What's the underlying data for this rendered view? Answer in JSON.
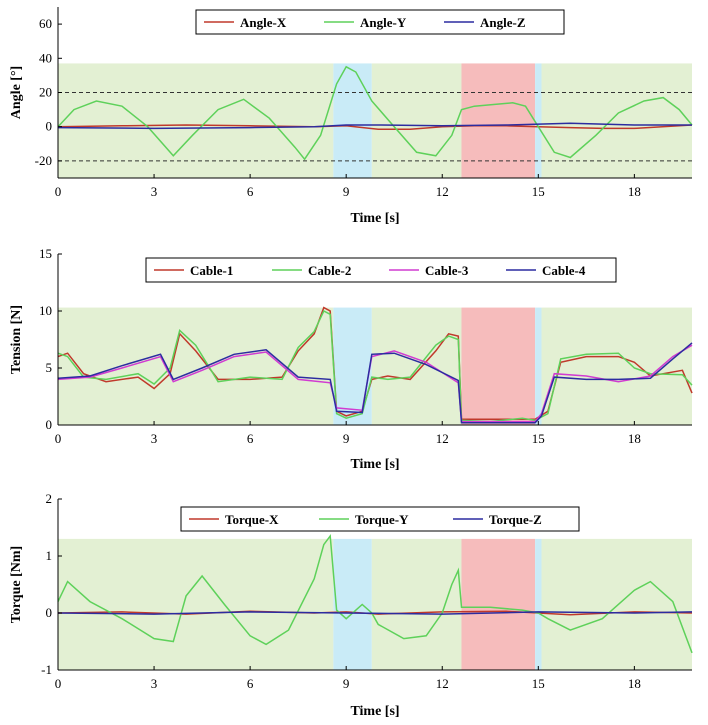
{
  "colors": {
    "zone_green": "#e3f0d3",
    "zone_blue": "#c9ebf7",
    "zone_red": "#f6bcbc",
    "x_red": "#c0392b",
    "y_green": "#5ed15a",
    "z_blue": "#2c2ca0",
    "magenta": "#d13bd1"
  },
  "chart_data": [
    {
      "type": "line",
      "title": "",
      "xlabel": "Time [s]",
      "ylabel": "Angle [°]",
      "xlim": [
        0,
        19.8
      ],
      "ylim": [
        -30,
        70
      ],
      "xticks": [
        "0",
        "3",
        "6",
        "9",
        "12",
        "15",
        "18"
      ],
      "yticks": [
        "-20",
        "0",
        "20",
        "40",
        "60"
      ],
      "xtick_values": [
        0,
        3,
        6,
        9,
        12,
        15,
        18
      ],
      "ytick_values": [
        -20,
        0,
        20,
        40,
        60
      ],
      "dashed_thresholds": [
        20,
        -20
      ],
      "background_band": [
        -30,
        37
      ],
      "zones": [
        {
          "kind": "green",
          "x0": 0,
          "x1": 8.6
        },
        {
          "kind": "blue",
          "x0": 8.6,
          "x1": 9.8
        },
        {
          "kind": "green",
          "x0": 9.8,
          "x1": 12.6
        },
        {
          "kind": "red",
          "x0": 12.6,
          "x1": 14.9
        },
        {
          "kind": "blue",
          "x0": 14.9,
          "x1": 15.1
        },
        {
          "kind": "green",
          "x0": 15.1,
          "x1": 19.8
        }
      ],
      "series": [
        {
          "name": "Angle-X",
          "color_key": "x_red",
          "x": [
            0,
            2,
            4,
            6,
            8,
            9,
            10,
            11,
            12,
            13,
            14,
            15,
            16,
            17,
            18,
            19.8
          ],
          "y": [
            0,
            0.5,
            1,
            0.5,
            0,
            0.5,
            -1.5,
            -1.5,
            0,
            0.5,
            0.5,
            0,
            -0.5,
            -1,
            -1,
            1
          ]
        },
        {
          "name": "Angle-Y",
          "color_key": "y_green",
          "x": [
            0,
            0.5,
            1.2,
            2,
            2.8,
            3.6,
            4.2,
            5,
            5.8,
            6.6,
            7.4,
            7.7,
            8.2,
            8.7,
            9,
            9.3,
            9.8,
            10.5,
            11.2,
            11.8,
            12.3,
            12.6,
            13,
            13.6,
            14.2,
            14.6,
            15,
            15.5,
            16,
            16.8,
            17.5,
            18.3,
            18.9,
            19.4,
            19.8
          ],
          "y": [
            0,
            10,
            15,
            12,
            0,
            -17,
            -5,
            10,
            16,
            5,
            -12,
            -19,
            -5,
            25,
            35,
            32,
            15,
            0,
            -15,
            -17,
            -5,
            10,
            12,
            13,
            14,
            12,
            0,
            -15,
            -18,
            -5,
            8,
            15,
            17,
            10,
            1
          ]
        },
        {
          "name": "Angle-Z",
          "color_key": "z_blue",
          "x": [
            0,
            3,
            6,
            8,
            9,
            10,
            12,
            14,
            16,
            18,
            19.8
          ],
          "y": [
            -0.5,
            -1,
            -0.5,
            0,
            1,
            1,
            0.5,
            1,
            2,
            1,
            1
          ]
        }
      ]
    },
    {
      "type": "line",
      "title": "",
      "xlabel": "Time [s]",
      "ylabel": "Tension [N]",
      "xlim": [
        0,
        19.8
      ],
      "ylim": [
        0,
        15
      ],
      "xticks": [
        "0",
        "3",
        "6",
        "9",
        "12",
        "15",
        "18"
      ],
      "yticks": [
        "0",
        "5",
        "10",
        "15"
      ],
      "xtick_values": [
        0,
        3,
        6,
        9,
        12,
        15,
        18
      ],
      "ytick_values": [
        0,
        5,
        10,
        15
      ],
      "background_band": [
        0,
        10.3
      ],
      "zones": [
        {
          "kind": "green",
          "x0": 0,
          "x1": 8.6
        },
        {
          "kind": "blue",
          "x0": 8.6,
          "x1": 9.8
        },
        {
          "kind": "green",
          "x0": 9.8,
          "x1": 12.6
        },
        {
          "kind": "red",
          "x0": 12.6,
          "x1": 14.9
        },
        {
          "kind": "blue",
          "x0": 14.9,
          "x1": 15.1
        },
        {
          "kind": "green",
          "x0": 15.1,
          "x1": 19.8
        }
      ],
      "series": [
        {
          "name": "Cable-1",
          "color_key": "x_red",
          "x": [
            0,
            0.3,
            0.8,
            1.5,
            2.5,
            3,
            3.5,
            3.8,
            4.3,
            5,
            6,
            7,
            7.5,
            8,
            8.3,
            8.5,
            8.7,
            9,
            9.5,
            9.8,
            10.3,
            11,
            11.8,
            12.2,
            12.5,
            12.6,
            13.5,
            14.5,
            14.9,
            15.3,
            15.7,
            16.5,
            17.5,
            18,
            18.5,
            19.5,
            19.8
          ],
          "y": [
            6,
            6.3,
            4.5,
            3.8,
            4.2,
            3.2,
            4.5,
            8,
            6.5,
            4,
            4,
            4.2,
            6.5,
            8,
            10.3,
            10,
            1.2,
            0.8,
            1.2,
            4,
            4.3,
            4,
            6.5,
            8,
            7.8,
            0.5,
            0.5,
            0.5,
            0.5,
            1.2,
            5.5,
            6,
            6,
            5.5,
            4.3,
            4.8,
            2.8
          ]
        },
        {
          "name": "Cable-2",
          "color_key": "y_green",
          "x": [
            0,
            0.3,
            0.8,
            1.5,
            2.5,
            3,
            3.5,
            3.8,
            4.3,
            5,
            6,
            7,
            7.5,
            8,
            8.3,
            8.5,
            8.7,
            9,
            9.5,
            9.8,
            10.3,
            11,
            11.8,
            12.2,
            12.5,
            12.6,
            13.5,
            14.5,
            14.9,
            15.3,
            15.7,
            16.5,
            17.5,
            18,
            18.5,
            19.5,
            19.8
          ],
          "y": [
            6.3,
            6,
            4.2,
            4,
            4.5,
            3.6,
            5,
            8.3,
            7,
            3.8,
            4.2,
            4,
            6.8,
            8.2,
            10,
            9.7,
            1,
            0.6,
            1,
            4.2,
            4,
            4.2,
            7,
            7.8,
            7.5,
            0.4,
            0.3,
            0.6,
            0.4,
            1,
            5.8,
            6.2,
            6.3,
            5,
            4.5,
            4.4,
            3.5
          ]
        },
        {
          "name": "Cable-3",
          "color_key": "magenta",
          "x": [
            0,
            1,
            2,
            3.2,
            3.6,
            4.5,
            5.5,
            6.5,
            7.5,
            8.5,
            8.7,
            9.5,
            9.8,
            10.5,
            11.5,
            12.5,
            12.6,
            14.9,
            15.1,
            15.5,
            16.5,
            17.5,
            18.5,
            19.2,
            19.8
          ],
          "y": [
            4,
            4.2,
            5,
            6,
            3.8,
            4.8,
            6,
            6.4,
            4,
            3.7,
            1.5,
            1.3,
            6,
            6.5,
            5.5,
            3.7,
            0.3,
            0.3,
            1,
            4.5,
            4.3,
            3.8,
            4.3,
            6,
            7
          ]
        },
        {
          "name": "Cable-4",
          "color_key": "z_blue",
          "x": [
            0,
            1,
            2,
            3.2,
            3.6,
            4.5,
            5.5,
            6.5,
            7.5,
            8.5,
            8.7,
            9.5,
            9.8,
            10.5,
            11.5,
            12.5,
            12.6,
            14.9,
            15.1,
            15.5,
            16.5,
            17.5,
            18.5,
            19.2,
            19.8
          ],
          "y": [
            4.1,
            4.3,
            5.2,
            6.2,
            4,
            5,
            6.2,
            6.6,
            4.2,
            4,
            1.2,
            1.1,
            6.2,
            6.3,
            5.3,
            3.9,
            0.2,
            0.2,
            0.8,
            4.2,
            4,
            4,
            4.1,
            5.8,
            7.2
          ]
        }
      ]
    },
    {
      "type": "line",
      "title": "",
      "xlabel": "Time [s]",
      "ylabel": "Torque [Nm]",
      "xlim": [
        0,
        19.8
      ],
      "ylim": [
        -1,
        2
      ],
      "xticks": [
        "0",
        "3",
        "6",
        "9",
        "12",
        "15",
        "18"
      ],
      "yticks": [
        "-1",
        "0",
        "1",
        "2"
      ],
      "xtick_values": [
        0,
        3,
        6,
        9,
        12,
        15,
        18
      ],
      "ytick_values": [
        -1,
        0,
        1,
        2
      ],
      "background_band": [
        -1,
        1.3
      ],
      "zones": [
        {
          "kind": "green",
          "x0": 0,
          "x1": 8.6
        },
        {
          "kind": "blue",
          "x0": 8.6,
          "x1": 9.8
        },
        {
          "kind": "green",
          "x0": 9.8,
          "x1": 12.6
        },
        {
          "kind": "red",
          "x0": 12.6,
          "x1": 14.9
        },
        {
          "kind": "blue",
          "x0": 14.9,
          "x1": 15.1
        },
        {
          "kind": "green",
          "x0": 15.1,
          "x1": 19.8
        }
      ],
      "series": [
        {
          "name": "Torque-X",
          "color_key": "x_red",
          "x": [
            0,
            2,
            4,
            6,
            8,
            9,
            10,
            12,
            14,
            16,
            18,
            19.8
          ],
          "y": [
            0,
            0.02,
            -0.02,
            0.03,
            0,
            0.02,
            -0.02,
            0.02,
            0.03,
            -0.03,
            0.02,
            0
          ]
        },
        {
          "name": "Torque-Y",
          "color_key": "y_green",
          "x": [
            0,
            0.3,
            1,
            2,
            3,
            3.6,
            4,
            4.5,
            5.2,
            6,
            6.5,
            7.2,
            8,
            8.3,
            8.5,
            8.7,
            9,
            9.5,
            9.8,
            10,
            10.8,
            11.5,
            12,
            12.3,
            12.5,
            12.6,
            13.5,
            14.5,
            15,
            15.3,
            16,
            17,
            18,
            18.5,
            19.2,
            19.8
          ],
          "y": [
            0.2,
            0.55,
            0.2,
            -0.1,
            -0.45,
            -0.5,
            0.3,
            0.65,
            0.15,
            -0.4,
            -0.55,
            -0.3,
            0.6,
            1.2,
            1.35,
            0.05,
            -0.1,
            0.15,
            0,
            -0.2,
            -0.45,
            -0.4,
            0,
            0.5,
            0.75,
            0.1,
            0.1,
            0.05,
            0,
            -0.1,
            -0.3,
            -0.1,
            0.4,
            0.55,
            0.2,
            -0.7
          ]
        },
        {
          "name": "Torque-Z",
          "color_key": "z_blue",
          "x": [
            0,
            3,
            6,
            9,
            12,
            15,
            18,
            19.8
          ],
          "y": [
            0,
            -0.02,
            0.02,
            0,
            -0.02,
            0.02,
            0,
            0.02
          ]
        }
      ]
    }
  ]
}
